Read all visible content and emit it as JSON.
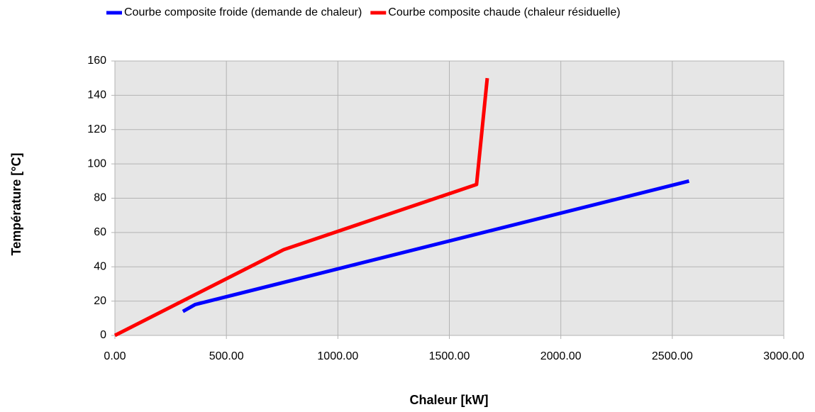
{
  "chart_data": {
    "type": "line",
    "xlabel": "Chaleur [kW]",
    "ylabel": "Température [°C]",
    "series": [
      {
        "name": "Courbe composite froide (demande de chaleur)",
        "color": "#0000ff",
        "x": [
          305,
          360,
          2575
        ],
        "values": [
          14,
          18,
          90
        ]
      },
      {
        "name": "Courbe composite chaude (chaleur résiduelle)",
        "color": "#ff0000",
        "x": [
          0,
          757,
          1622,
          1670
        ],
        "values": [
          0,
          50,
          88,
          150
        ]
      }
    ],
    "xlim": [
      0,
      3000
    ],
    "xticks": [
      {
        "value": 0,
        "label": "0.00"
      },
      {
        "value": 500,
        "label": "500.00"
      },
      {
        "value": 1000,
        "label": "1000.00"
      },
      {
        "value": 1500,
        "label": "1500.00"
      },
      {
        "value": 2000,
        "label": "2000.00"
      },
      {
        "value": 2500,
        "label": "2500.00"
      },
      {
        "value": 3000,
        "label": "3000.00"
      }
    ],
    "ylim": [
      0,
      160
    ],
    "yticks": [
      0,
      20,
      40,
      60,
      80,
      100,
      120,
      140,
      160
    ],
    "grid": true,
    "legend": "top"
  }
}
